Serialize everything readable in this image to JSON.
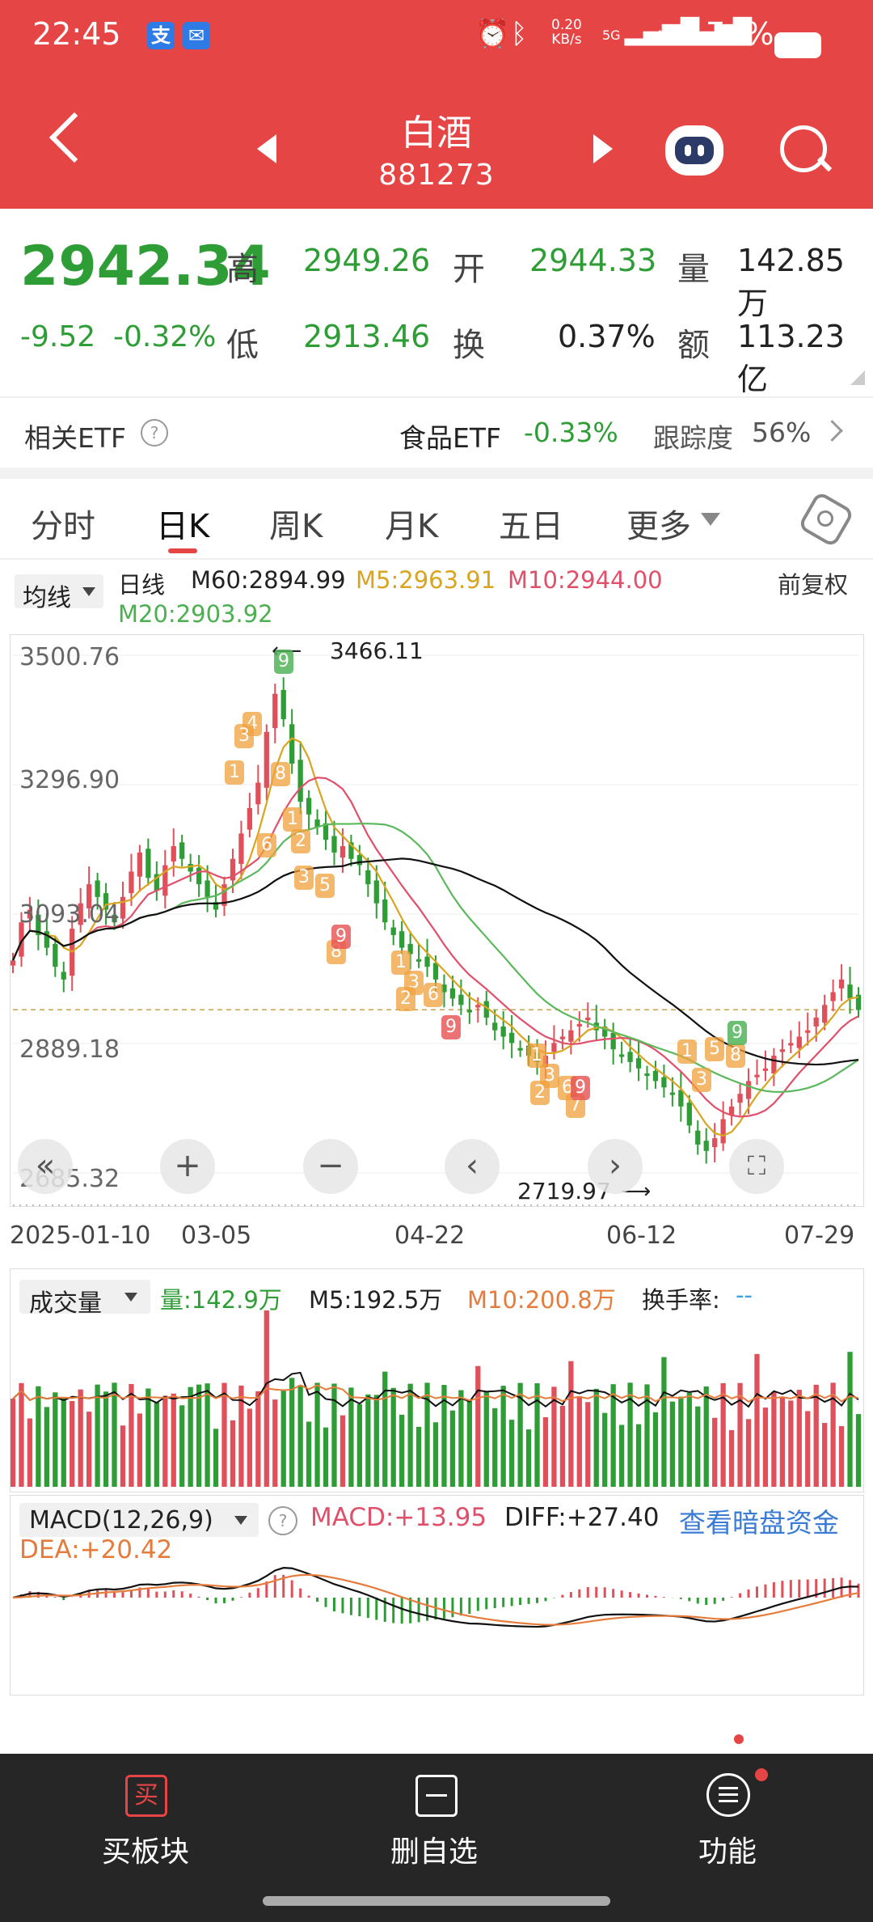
{
  "status_bar": {
    "time": "22:45",
    "speed_value": "0.20",
    "speed_unit": "KB/s",
    "net1": "5G",
    "net2": "4G",
    "battery": "74%"
  },
  "nav": {
    "title": "白酒",
    "code": "881273"
  },
  "quote": {
    "price": "2942.34",
    "change": "-9.52",
    "change_pct": "-0.32%",
    "high_label": "高",
    "high": "2949.26",
    "open_label": "开",
    "open": "2944.33",
    "vol_label": "量",
    "vol": "142.85万",
    "low_label": "低",
    "low": "2913.46",
    "turnover_label": "换",
    "turnover": "0.37%",
    "amount_label": "额",
    "amount": "113.23亿"
  },
  "etf": {
    "label": "相关ETF",
    "help": "?",
    "name": "食品ETF",
    "pct": "-0.33%",
    "track_label": "跟踪度",
    "track": "56%"
  },
  "tabs": [
    "分时",
    "日K",
    "周K",
    "月K",
    "五日",
    "更多"
  ],
  "kline": {
    "ma_selector": "均线",
    "period": "日线",
    "m60": "M60:2894.99",
    "m5": "M5:2963.91",
    "m10": "M10:2944.00",
    "m20": "M20:2903.92",
    "adjust": "前复权",
    "y_ticks": [
      "3500.76",
      "3296.90",
      "3093.04",
      "2889.18",
      "2685.32"
    ],
    "x_ticks": [
      "2025-01-10",
      "03-05",
      "04-22",
      "06-12",
      "07-29"
    ],
    "max_label": "3466.11",
    "min_label": "2719.97"
  },
  "volume": {
    "selector": "成交量",
    "vol": "量:142.9万",
    "m5": "M5:192.5万",
    "m10": "M10:200.8万",
    "turn_label": "换手率:",
    "turn_val": "--"
  },
  "macd": {
    "selector": "MACD(12,26,9)",
    "help": "?",
    "macd": "MACD:+13.95",
    "diff": "DIFF:+27.40",
    "link": "查看暗盘资金",
    "dea": "DEA:+20.42"
  },
  "bottom": {
    "buy": "买板块",
    "buy_icon": "买",
    "remove": "删自选",
    "func": "功能"
  },
  "chart_data": {
    "type": "candlestick",
    "x_range": [
      "2025-01-10",
      "2025-07-29"
    ],
    "ylim": [
      2685.32,
      3500.76
    ],
    "high_marker": 3466.11,
    "low_marker": 2719.97,
    "series": [
      {
        "name": "M60",
        "value": 2894.99
      },
      {
        "name": "M5",
        "value": 2963.91
      },
      {
        "name": "M10",
        "value": 2944.0
      },
      {
        "name": "M20",
        "value": 2903.92
      }
    ],
    "close_path": [
      3020,
      3080,
      3100,
      3060,
      3040,
      3010,
      2990,
      3070,
      3110,
      3140,
      3120,
      3100,
      3080,
      3120,
      3160,
      3190,
      3150,
      3130,
      3170,
      3200,
      3180,
      3160,
      3140,
      3120,
      3100,
      3140,
      3180,
      3220,
      3260,
      3300,
      3380,
      3440,
      3400,
      3330,
      3270,
      3250,
      3230,
      3210,
      3190,
      3200,
      3180,
      3170,
      3140,
      3110,
      3080,
      3060,
      3040,
      3030,
      3020,
      3010,
      2990,
      2970,
      2960,
      2950,
      2940,
      2950,
      2930,
      2910,
      2900,
      2890,
      2880,
      2870,
      2860,
      2870,
      2890,
      2900,
      2910,
      2920,
      2930,
      2910,
      2900,
      2880,
      2870,
      2860,
      2850,
      2840,
      2830,
      2820,
      2810,
      2790,
      2760,
      2730,
      2720,
      2740,
      2770,
      2790,
      2810,
      2830,
      2840,
      2850,
      2870,
      2880,
      2890,
      2900,
      2910,
      2930,
      2950,
      2970,
      2990,
      2960,
      2942
    ]
  }
}
